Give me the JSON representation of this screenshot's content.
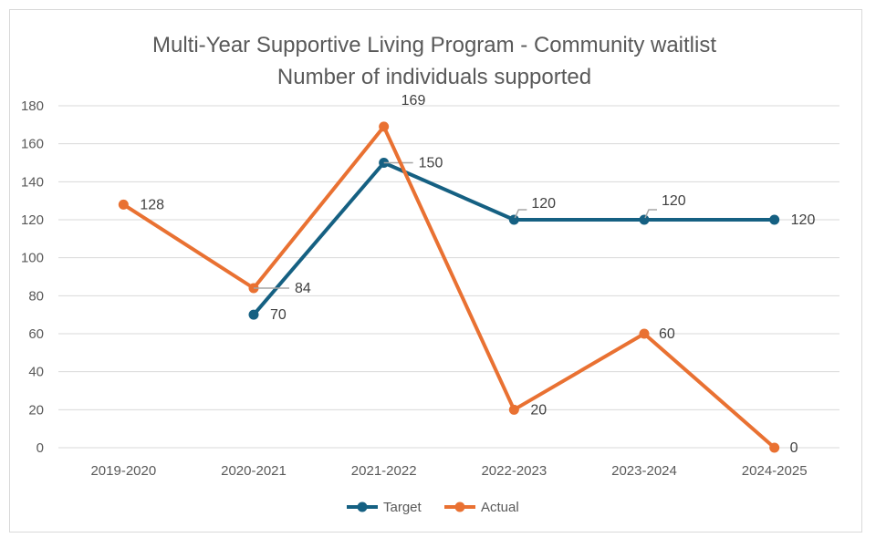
{
  "chart_data": {
    "type": "line",
    "title": "Multi-Year Supportive Living Program - Community waitlist",
    "subtitle": "Number of individuals supported",
    "categories": [
      "2019-2020",
      "2020-2021",
      "2021-2022",
      "2022-2023",
      "2023-2024",
      "2024-2025"
    ],
    "ylim": [
      0,
      180
    ],
    "yticks": [
      0,
      20,
      40,
      60,
      80,
      100,
      120,
      140,
      160,
      180
    ],
    "grid": true,
    "legend": "bottom",
    "series": [
      {
        "name": "Target",
        "color": "#156082",
        "values": [
          null,
          70,
          150,
          120,
          120,
          120
        ]
      },
      {
        "name": "Actual",
        "color": "#e97132",
        "values": [
          128,
          84,
          169,
          20,
          60,
          0
        ]
      }
    ]
  }
}
